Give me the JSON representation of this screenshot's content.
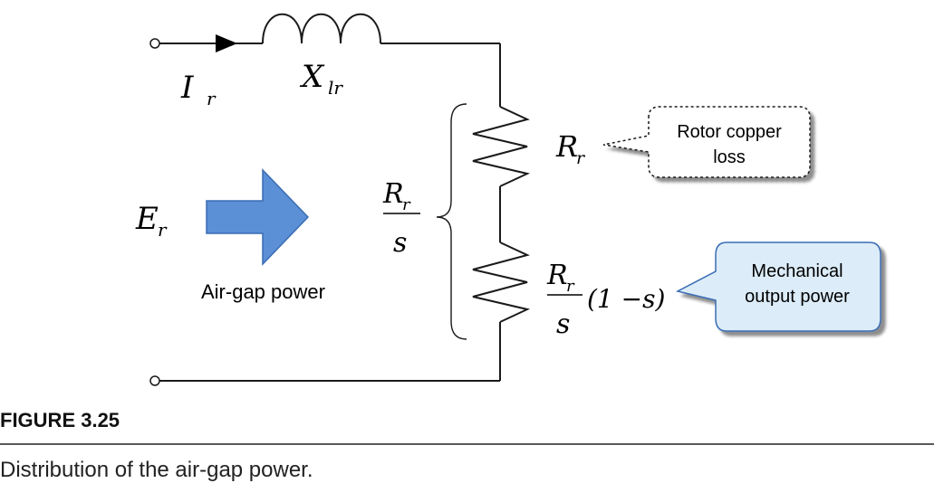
{
  "labels": {
    "current_symbol": "I",
    "current_sub": "r",
    "reactance_symbol": "X",
    "reactance_sub": "lr",
    "emf_symbol": "E",
    "emf_sub": "r",
    "rr_symbol": "R",
    "rr_sub": "r",
    "frac_num_symbol": "R",
    "frac_num_sub": "r",
    "frac_den": "s",
    "mech_num_symbol": "R",
    "mech_num_sub": "r",
    "mech_den": "s",
    "mech_factor": "(1 −s)",
    "air_gap": "Air-gap power",
    "rotor_loss_line1": "Rotor copper",
    "rotor_loss_line2": "loss",
    "mech_line1": "Mechanical",
    "mech_line2": "output power"
  },
  "figure": {
    "number": "FIGURE 3.25",
    "caption": "Distribution of the air-gap power."
  },
  "colors": {
    "arrow_fill": "#5b8fd6",
    "arrow_stroke": "#3b6db3",
    "callout_fill": "#dcecf9",
    "callout_stroke": "#3b6db3"
  }
}
